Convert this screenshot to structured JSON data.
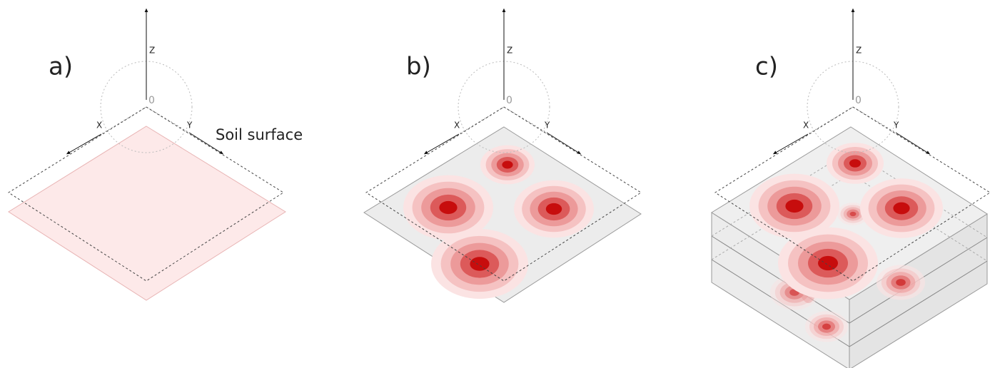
{
  "panels": [
    {
      "label": "a)",
      "axes": {
        "z": "Z",
        "origin": "0",
        "x": "X",
        "y": "Y"
      }
    },
    {
      "label": "b)",
      "axes": {
        "z": "Z",
        "origin": "0",
        "x": "X",
        "y": "Y"
      }
    },
    {
      "label": "c)",
      "axes": {
        "z": "Z",
        "origin": "0",
        "x": "X",
        "y": "Y"
      }
    }
  ],
  "annotation": "Soil surface"
}
